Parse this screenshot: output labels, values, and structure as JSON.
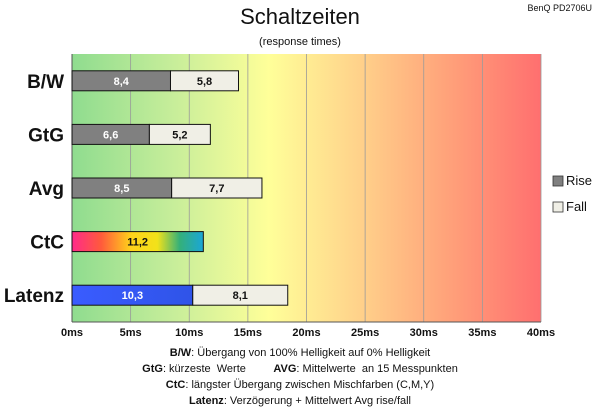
{
  "header": {
    "title": "Schaltzeiten",
    "subtitle": "(response times)",
    "model": "BenQ PD2706U"
  },
  "legend": [
    {
      "label": "Rise",
      "color": "#808080"
    },
    {
      "label": "Fall",
      "color": "#f0efe6"
    }
  ],
  "chart_data": {
    "type": "bar",
    "orientation": "horizontal",
    "stacked": true,
    "title": "Schaltzeiten",
    "subtitle": "(response times)",
    "categories": [
      "B/W",
      "GtG",
      "Avg",
      "CtC",
      "Latenz"
    ],
    "series": [
      {
        "name": "Rise",
        "values": [
          8.4,
          6.6,
          8.5,
          null,
          null
        ],
        "labels": [
          "8,4",
          "6,6",
          "8,5",
          "",
          ""
        ],
        "color": "#808080"
      },
      {
        "name": "Fall",
        "values": [
          5.8,
          5.2,
          7.7,
          null,
          null
        ],
        "labels": [
          "5,8",
          "5,2",
          "7,7",
          "",
          ""
        ],
        "color": "#f0efe6"
      },
      {
        "values": [
          null,
          null,
          null,
          11.2,
          10.3
        ],
        "labels": [
          "",
          "",
          "",
          "11,2",
          "10,3"
        ],
        "color": "gradient"
      },
      {
        "values": [
          null,
          null,
          null,
          null,
          8.1
        ],
        "labels": [
          "",
          "",
          "",
          "",
          "8,1"
        ],
        "color": "#f0efe6"
      }
    ],
    "xlim": [
      0,
      40
    ],
    "xticks": [
      0,
      5,
      10,
      15,
      20,
      25,
      30,
      35,
      40
    ],
    "xtick_labels": [
      "0ms",
      "5ms",
      "10ms",
      "15ms",
      "20ms",
      "25ms",
      "30ms",
      "35ms",
      "40ms"
    ],
    "grid": true,
    "legend_position": "right",
    "background": "gradient green-yellow-red"
  },
  "caption": [
    {
      "parts": [
        {
          "b": "B/W"
        },
        {
          "t": ":  Übergang von 100% Helligkeit auf 0% Helligkeit"
        }
      ]
    },
    {
      "parts": [
        {
          "b": "GtG"
        },
        {
          "t": ": kürzeste  Werte         "
        },
        {
          "b": "AVG"
        },
        {
          "t": ": Mittelwerte  an 15 Messpunkten"
        }
      ]
    },
    {
      "parts": [
        {
          "b": "CtC"
        },
        {
          "t": ": längster Übergang  zwischen Mischfarben (C,M,Y)"
        }
      ]
    },
    {
      "parts": [
        {
          "b": "Latenz"
        },
        {
          "t": ": Verzögerung  + Mittelwert  Avg rise/fall"
        }
      ]
    }
  ]
}
